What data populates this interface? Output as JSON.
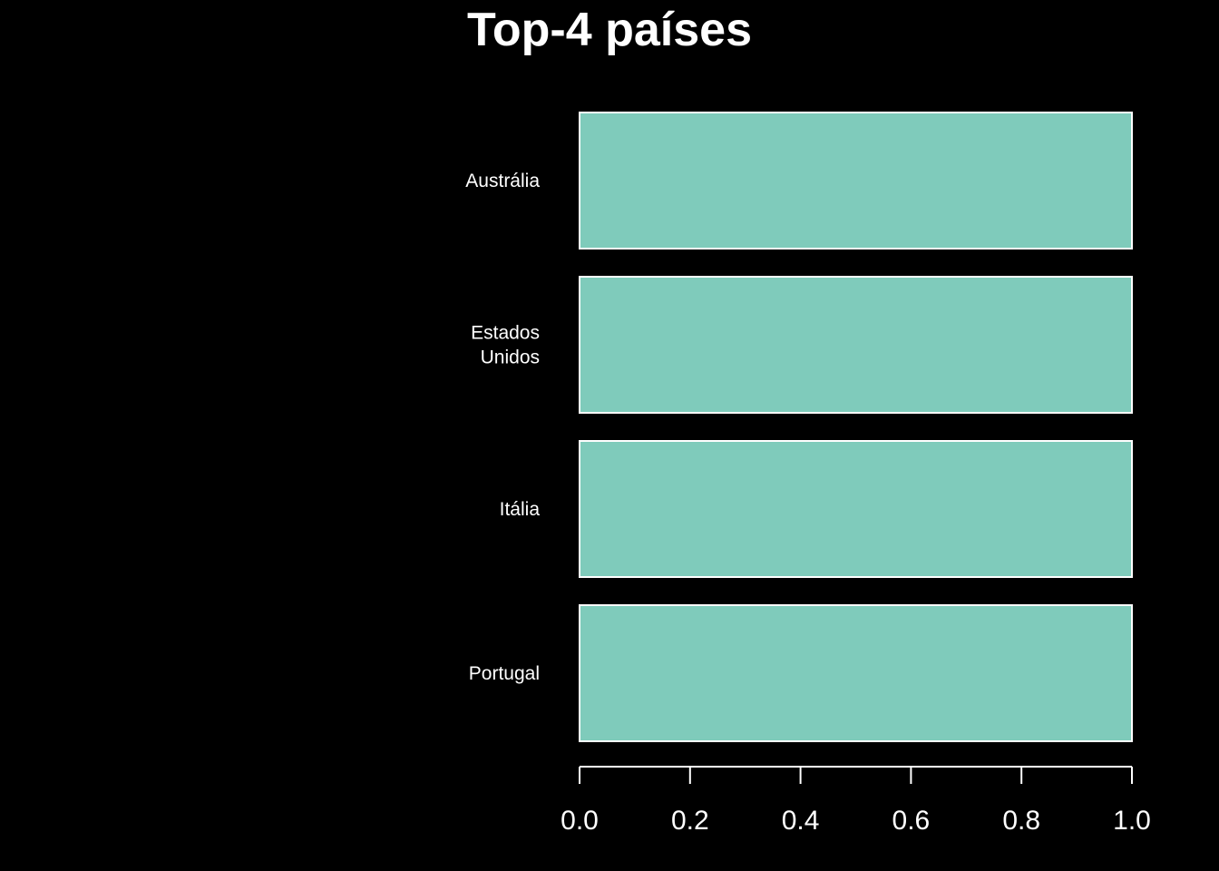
{
  "chart_data": {
    "type": "bar",
    "orientation": "horizontal",
    "title": "Top-4 países",
    "xlabel": "",
    "ylabel": "",
    "categories": [
      "Austrália",
      "Estados\nUnidos",
      "Itália",
      "Portugal"
    ],
    "values": [
      1.0,
      1.0,
      1.0,
      1.0
    ],
    "xlim": [
      0,
      1
    ],
    "xticks": [
      "0.0",
      "0.2",
      "0.4",
      "0.6",
      "0.8",
      "1.0"
    ],
    "grid": false,
    "legend": "none",
    "bar_color": "#7fcbbb",
    "background": "#000000"
  }
}
